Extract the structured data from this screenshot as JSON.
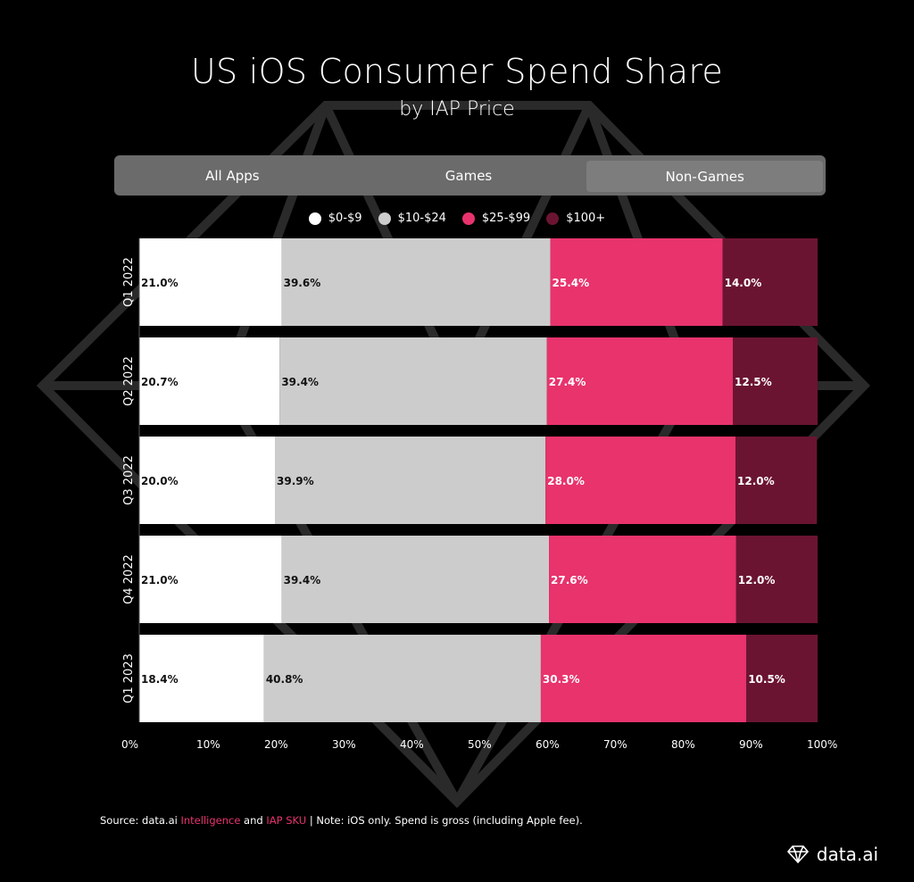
{
  "title": "US iOS Consumer Spend Share",
  "subtitle": "by IAP Price",
  "tabs": [
    {
      "label": "All Apps",
      "active": false
    },
    {
      "label": "Games",
      "active": false
    },
    {
      "label": "Non-Games",
      "active": true
    }
  ],
  "legend": [
    {
      "label": "$0-$9",
      "color": "#ffffff"
    },
    {
      "label": "$10-$24",
      "color": "#cccccc"
    },
    {
      "label": "$25-$99",
      "color": "#e8336d"
    },
    {
      "label": "$100+",
      "color": "#6b1432"
    }
  ],
  "chart_data": {
    "type": "bar",
    "orientation": "horizontal",
    "stacked": true,
    "categories": [
      "Q1 2022",
      "Q2 2022",
      "Q3 2022",
      "Q4 2022",
      "Q1 2023"
    ],
    "series": [
      {
        "name": "$0-$9",
        "color": "#ffffff",
        "values": [
          21.0,
          20.7,
          20.0,
          21.0,
          18.4
        ],
        "labels": [
          "21.0%",
          "20.7%",
          "20.0%",
          "21.0%",
          "18.4%"
        ]
      },
      {
        "name": "$10-$24",
        "color": "#cccccc",
        "values": [
          39.6,
          39.4,
          39.9,
          39.4,
          40.8
        ],
        "labels": [
          "39.6%",
          "39.4%",
          "39.9%",
          "39.4%",
          "40.8%"
        ]
      },
      {
        "name": "$25-$99",
        "color": "#e8336d",
        "values": [
          25.4,
          27.4,
          28.0,
          27.6,
          30.3
        ],
        "labels": [
          "25.4%",
          "27.4%",
          "28.0%",
          "27.6%",
          "30.3%"
        ]
      },
      {
        "name": "$100+",
        "color": "#6b1432",
        "values": [
          14.0,
          12.5,
          12.0,
          12.0,
          10.5
        ],
        "labels": [
          "14.0%",
          "12.5%",
          "12.0%",
          "12.0%",
          "10.5%"
        ]
      }
    ],
    "xlim": [
      0,
      100
    ],
    "x_ticks": [
      "0%",
      "10%",
      "20%",
      "30%",
      "40%",
      "50%",
      "60%",
      "70%",
      "80%",
      "90%",
      "100%"
    ],
    "grid": false,
    "legend_position": "top-center"
  },
  "source": {
    "prefix": "Source: data.ai ",
    "link1": "Intelligence",
    "middle": " and ",
    "link2": "IAP SKU",
    "suffix": " | Note: iOS only. Spend is gross (including Apple fee)."
  },
  "brand": {
    "name": "data.ai"
  }
}
